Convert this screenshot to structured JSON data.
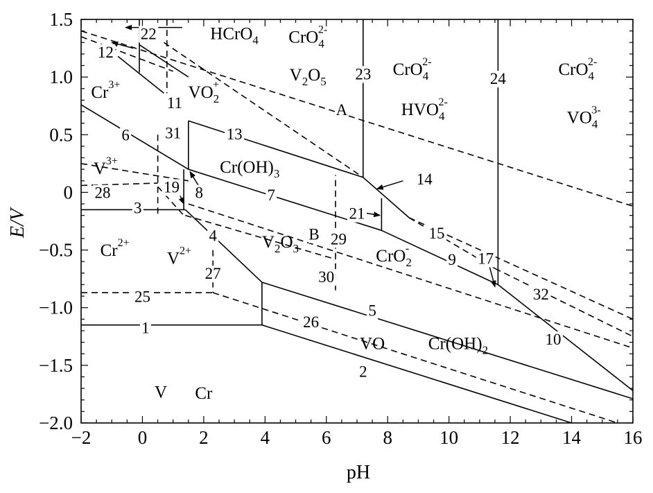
{
  "chart_data": {
    "type": "line",
    "title": "",
    "xlabel": "pH",
    "ylabel": "E/V",
    "xlim": [
      -2,
      16
    ],
    "ylim": [
      -2.0,
      1.5
    ],
    "grid": false,
    "x_ticks": [
      -2,
      0,
      2,
      4,
      6,
      8,
      10,
      12,
      14,
      16
    ],
    "x_tick_labels": [
      "−2",
      "0",
      "2",
      "4",
      "6",
      "8",
      "10",
      "12",
      "14",
      "16"
    ],
    "y_ticks": [
      1.5,
      1.0,
      0.5,
      0,
      -0.5,
      -1.0,
      -1.5,
      -2.0
    ],
    "y_tick_labels": [
      "1.5",
      "1.0",
      "0.5",
      "0",
      "−0.5",
      "−1.0",
      "−1.5",
      "−2.0"
    ],
    "series": [
      {
        "label": "1",
        "style": "solid",
        "points": [
          [
            -2,
            -1.15
          ],
          [
            3.9,
            -1.15
          ]
        ]
      },
      {
        "label": "2",
        "style": "solid",
        "points": [
          [
            3.9,
            -1.15
          ],
          [
            14.0,
            -2.0
          ]
        ]
      },
      {
        "label": "3",
        "style": "solid",
        "points": [
          [
            -2,
            -0.15
          ],
          [
            1.4,
            -0.15
          ]
        ]
      },
      {
        "label": "4",
        "style": "solid",
        "points": [
          [
            1.4,
            -0.15
          ],
          [
            3.9,
            -0.78
          ]
        ]
      },
      {
        "label": "",
        "style": "solid",
        "points": [
          [
            3.9,
            -0.78
          ],
          [
            3.9,
            -1.15
          ]
        ]
      },
      {
        "label": "5",
        "style": "solid",
        "points": [
          [
            3.9,
            -0.78
          ],
          [
            16,
            -1.79
          ]
        ]
      },
      {
        "label": "6",
        "style": "solid",
        "points": [
          [
            -2,
            0.76
          ],
          [
            1.5,
            0.2
          ]
        ]
      },
      {
        "label": "7",
        "style": "solid",
        "points": [
          [
            1.5,
            0.2
          ],
          [
            7.8,
            -0.33
          ]
        ]
      },
      {
        "label": "8",
        "style": "solid",
        "points": [
          [
            1.5,
            0.2
          ],
          [
            1.5,
            0.62
          ]
        ]
      },
      {
        "label": "",
        "style": "solid",
        "points": [
          [
            1.35,
            0.2
          ],
          [
            1.35,
            -0.15
          ]
        ]
      },
      {
        "label": "9",
        "style": "solid",
        "points": [
          [
            7.8,
            -0.33
          ],
          [
            11.6,
            -0.8
          ]
        ]
      },
      {
        "label": "10",
        "style": "solid",
        "points": [
          [
            11.6,
            -0.8
          ],
          [
            16,
            -1.72
          ]
        ]
      },
      {
        "label": "11",
        "style": "solid",
        "points": [
          [
            -0.8,
            1.18
          ],
          [
            0.7,
            0.86
          ]
        ]
      },
      {
        "label": "13",
        "style": "solid",
        "points": [
          [
            1.5,
            0.62
          ],
          [
            7.2,
            0.13
          ]
        ]
      },
      {
        "label": "14",
        "style": "solid",
        "points": [
          [
            7.2,
            0.13
          ],
          [
            8.7,
            -0.22
          ]
        ]
      },
      {
        "label": "21",
        "style": "solid",
        "points": [
          [
            7.8,
            -0.05
          ],
          [
            7.8,
            -0.33
          ]
        ]
      },
      {
        "label": "22",
        "style": "solid",
        "points": [
          [
            -0.1,
            1.5
          ],
          [
            -0.1,
            1.04
          ]
        ]
      },
      {
        "label": "23",
        "style": "solid",
        "points": [
          [
            7.2,
            1.5
          ],
          [
            7.2,
            0.13
          ]
        ]
      },
      {
        "label": "24",
        "style": "solid",
        "points": [
          [
            11.6,
            1.5
          ],
          [
            11.6,
            -0.8
          ]
        ]
      },
      {
        "label": "",
        "style": "solid",
        "points": [
          [
            -0.1,
            1.28
          ],
          [
            1.5,
            1.0
          ]
        ]
      },
      {
        "label": "A",
        "style": "dashed",
        "points": [
          [
            -2,
            1.4
          ],
          [
            16,
            -0.12
          ]
        ]
      },
      {
        "label": "B",
        "style": "dashed",
        "points": [
          [
            1.5,
            -0.1
          ],
          [
            16,
            -1.35
          ]
        ]
      },
      {
        "label": "12",
        "style": "dashed",
        "points": [
          [
            -2,
            1.35
          ],
          [
            1.0,
            1.05
          ]
        ]
      },
      {
        "label": "15",
        "style": "dashed",
        "points": [
          [
            8.7,
            -0.22
          ],
          [
            11.5,
            -0.66
          ]
        ]
      },
      {
        "label": "17",
        "style": "dashed",
        "points": [
          [
            11.5,
            -0.66
          ],
          [
            16,
            -1.25
          ]
        ]
      },
      {
        "label": "19",
        "style": "dashed",
        "points": [
          [
            0.5,
            0.05
          ],
          [
            1.35,
            -0.2
          ]
        ]
      },
      {
        "label": "25",
        "style": "dashed",
        "points": [
          [
            -2,
            -0.87
          ],
          [
            2.3,
            -0.87
          ]
        ]
      },
      {
        "label": "26",
        "style": "dashed",
        "points": [
          [
            2.3,
            -0.87
          ],
          [
            15.5,
            -2.0
          ]
        ]
      },
      {
        "label": "27",
        "style": "dashed",
        "points": [
          [
            2.3,
            -0.5
          ],
          [
            2.3,
            -0.87
          ]
        ]
      },
      {
        "label": "28",
        "style": "dashed",
        "points": [
          [
            -2,
            0.06
          ],
          [
            0.5,
            0.08
          ]
        ]
      },
      {
        "label": "29",
        "style": "dashed",
        "points": [
          [
            6.3,
            -0.85
          ],
          [
            6.3,
            0.15
          ]
        ]
      },
      {
        "label": "30",
        "style": "dashed",
        "points": [
          [
            1.4,
            -0.2
          ],
          [
            6.3,
            -0.58
          ]
        ]
      },
      {
        "label": "31",
        "style": "dashed",
        "points": [
          [
            0.5,
            0.5
          ],
          [
            0.5,
            -0.2
          ]
        ]
      },
      {
        "label": "",
        "style": "dashed",
        "points": [
          [
            0.8,
            1.5
          ],
          [
            0.8,
            0.86
          ]
        ]
      },
      {
        "label": "",
        "style": "dashed",
        "points": [
          [
            0.7,
            1.3
          ],
          [
            7.2,
            0.13
          ]
        ]
      },
      {
        "label": "32",
        "style": "dashed",
        "points": [
          [
            8.7,
            -0.22
          ],
          [
            16,
            -1.1
          ]
        ]
      },
      {
        "label": "",
        "style": "dashed",
        "points": [
          [
            -2,
            0.25
          ],
          [
            1.5,
            0.1
          ]
        ]
      }
    ],
    "region_labels": [
      {
        "text": "HCrO",
        "sub": "4",
        "x": 3.0,
        "y": 1.33
      },
      {
        "text": "CrO",
        "sub": "4",
        "sup": "2-",
        "x": 5.4,
        "y": 1.3
      },
      {
        "text": "V",
        "sub": "2",
        "text2": "O",
        "sub2": "5",
        "x": 5.4,
        "y": 0.97
      },
      {
        "text": "CrO",
        "sub": "4",
        "sup": "2-",
        "x": 8.8,
        "y": 1.02
      },
      {
        "text": "HVO",
        "sub": "4",
        "sup": "2-",
        "x": 9.2,
        "y": 0.67
      },
      {
        "text": "CrO",
        "sub": "4",
        "sup": "2-",
        "x": 14.2,
        "y": 1.02
      },
      {
        "text": "VO",
        "sub": "4",
        "sup": "3-",
        "x": 14.4,
        "y": 0.6
      },
      {
        "text": "VO",
        "sub": "2",
        "sup": "+",
        "x": 2.0,
        "y": 0.82
      },
      {
        "text": "Cr",
        "sup": "3+",
        "x": -1.2,
        "y": 0.82
      },
      {
        "text": "V",
        "sup": "3+",
        "x": -1.2,
        "y": 0.16
      },
      {
        "text": "Cr(OH)",
        "sub": "3",
        "x": 3.5,
        "y": 0.17
      },
      {
        "text": "V",
        "sub": "2",
        "text2": "O",
        "sub2": "3",
        "x": 4.5,
        "y": -0.48
      },
      {
        "text": "CrO",
        "sub": "2",
        "sup": "-",
        "x": 8.2,
        "y": -0.6
      },
      {
        "text": "Cr",
        "sup": "2+",
        "x": -0.9,
        "y": -0.55
      },
      {
        "text": "V",
        "sup": "2+",
        "x": 1.2,
        "y": -0.62
      },
      {
        "text": "VO",
        "x": 7.5,
        "y": -1.36
      },
      {
        "text": "Cr(OH)",
        "sub": "2",
        "x": 10.3,
        "y": -1.36
      },
      {
        "text": "V",
        "x": 0.6,
        "y": -1.78
      },
      {
        "text": "Cr",
        "x": 2.0,
        "y": -1.79
      }
    ],
    "line_labels": [
      {
        "text": "22",
        "x": 0.2,
        "y": 1.33
      },
      {
        "text": "12",
        "x": -1.2,
        "y": 1.17
      },
      {
        "text": "11",
        "x": 1.05,
        "y": 0.73
      },
      {
        "text": "6",
        "x": -0.55,
        "y": 0.45
      },
      {
        "text": "31",
        "x": 1.0,
        "y": 0.47
      },
      {
        "text": "13",
        "x": 3.0,
        "y": 0.46
      },
      {
        "text": "A",
        "x": 6.5,
        "y": 0.67
      },
      {
        "text": "23",
        "x": 7.2,
        "y": 0.98
      },
      {
        "text": "24",
        "x": 11.6,
        "y": 0.94
      },
      {
        "text": "14",
        "x": 9.2,
        "y": 0.07
      },
      {
        "text": "19",
        "x": 0.95,
        "y": 0.0
      },
      {
        "text": "8",
        "x": 1.85,
        "y": -0.05
      },
      {
        "text": "28",
        "x": -1.3,
        "y": -0.05
      },
      {
        "text": "7",
        "x": 4.2,
        "y": -0.07
      },
      {
        "text": "21",
        "x": 7.0,
        "y": -0.23
      },
      {
        "text": "3",
        "x": -0.15,
        "y": -0.18
      },
      {
        "text": "15",
        "x": 9.6,
        "y": -0.4
      },
      {
        "text": "4",
        "x": 2.3,
        "y": -0.42
      },
      {
        "text": "B",
        "x": 5.6,
        "y": -0.41
      },
      {
        "text": "29",
        "x": 6.4,
        "y": -0.45
      },
      {
        "text": "9",
        "x": 10.1,
        "y": -0.63
      },
      {
        "text": "17",
        "x": 11.2,
        "y": -0.62
      },
      {
        "text": "27",
        "x": 2.3,
        "y": -0.75
      },
      {
        "text": "30",
        "x": 6.0,
        "y": -0.78
      },
      {
        "text": "32",
        "x": 13.0,
        "y": -0.93
      },
      {
        "text": "25",
        "x": 0.0,
        "y": -0.95
      },
      {
        "text": "26",
        "x": 5.5,
        "y": -1.17
      },
      {
        "text": "5",
        "x": 7.5,
        "y": -1.07
      },
      {
        "text": "1",
        "x": 0.1,
        "y": -1.22
      },
      {
        "text": "10",
        "x": 13.4,
        "y": -1.32
      },
      {
        "text": "2",
        "x": 7.2,
        "y": -1.6
      }
    ],
    "arrows": [
      {
        "to": "22",
        "from": [
          1.3,
          1.43
        ],
        "tip": [
          -0.55,
          1.43
        ]
      },
      {
        "to": "12",
        "from": [
          -0.3,
          1.25
        ],
        "tip": [
          -1.0,
          1.3
        ]
      },
      {
        "to": "19",
        "from": [
          1.1,
          0.05
        ],
        "tip": [
          1.35,
          -0.1
        ]
      },
      {
        "to": "8",
        "from": [
          1.85,
          0.05
        ],
        "tip": [
          1.55,
          0.18
        ]
      },
      {
        "to": "14",
        "from": [
          8.5,
          0.1
        ],
        "tip": [
          7.65,
          0.03
        ]
      },
      {
        "to": "21",
        "from": [
          7.3,
          -0.18
        ],
        "tip": [
          7.75,
          -0.2
        ]
      },
      {
        "to": "17",
        "from": [
          11.3,
          -0.62
        ],
        "tip": [
          11.5,
          -0.82
        ]
      }
    ]
  }
}
